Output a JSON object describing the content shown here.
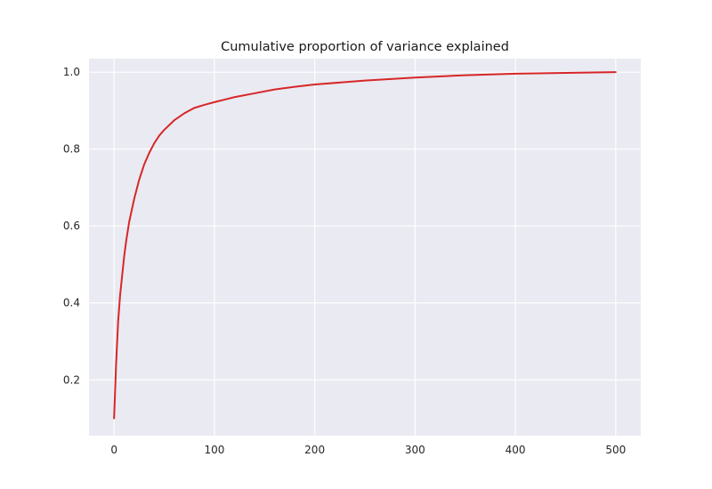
{
  "chart_data": {
    "type": "line",
    "title": "Cumulative proportion of variance explained",
    "xlabel": "",
    "ylabel": "",
    "xlim": [
      -25,
      525
    ],
    "ylim": [
      0.055,
      1.035
    ],
    "x_ticks": [
      0,
      100,
      200,
      300,
      400,
      500
    ],
    "y_ticks": [
      0.2,
      0.4,
      0.6,
      0.8,
      1.0
    ],
    "x_tick_labels": [
      "0",
      "100",
      "200",
      "300",
      "400",
      "500"
    ],
    "y_tick_labels": [
      "0.2",
      "0.4",
      "0.6",
      "0.8",
      "1.0"
    ],
    "grid": true,
    "legend": "none",
    "background_color": "#eaeaf2",
    "grid_color": "#ffffff",
    "series": [
      {
        "color": "#d62728",
        "x": [
          0,
          2,
          4,
          6,
          8,
          10,
          12,
          15,
          20,
          25,
          30,
          35,
          40,
          45,
          50,
          60,
          70,
          80,
          90,
          100,
          120,
          140,
          160,
          180,
          200,
          250,
          300,
          350,
          400,
          450,
          500
        ],
        "y": [
          0.1,
          0.24,
          0.35,
          0.42,
          0.47,
          0.52,
          0.56,
          0.61,
          0.67,
          0.72,
          0.76,
          0.79,
          0.815,
          0.835,
          0.85,
          0.875,
          0.893,
          0.907,
          0.915,
          0.922,
          0.935,
          0.945,
          0.955,
          0.962,
          0.968,
          0.978,
          0.986,
          0.992,
          0.996,
          0.998,
          1.0
        ]
      }
    ]
  }
}
